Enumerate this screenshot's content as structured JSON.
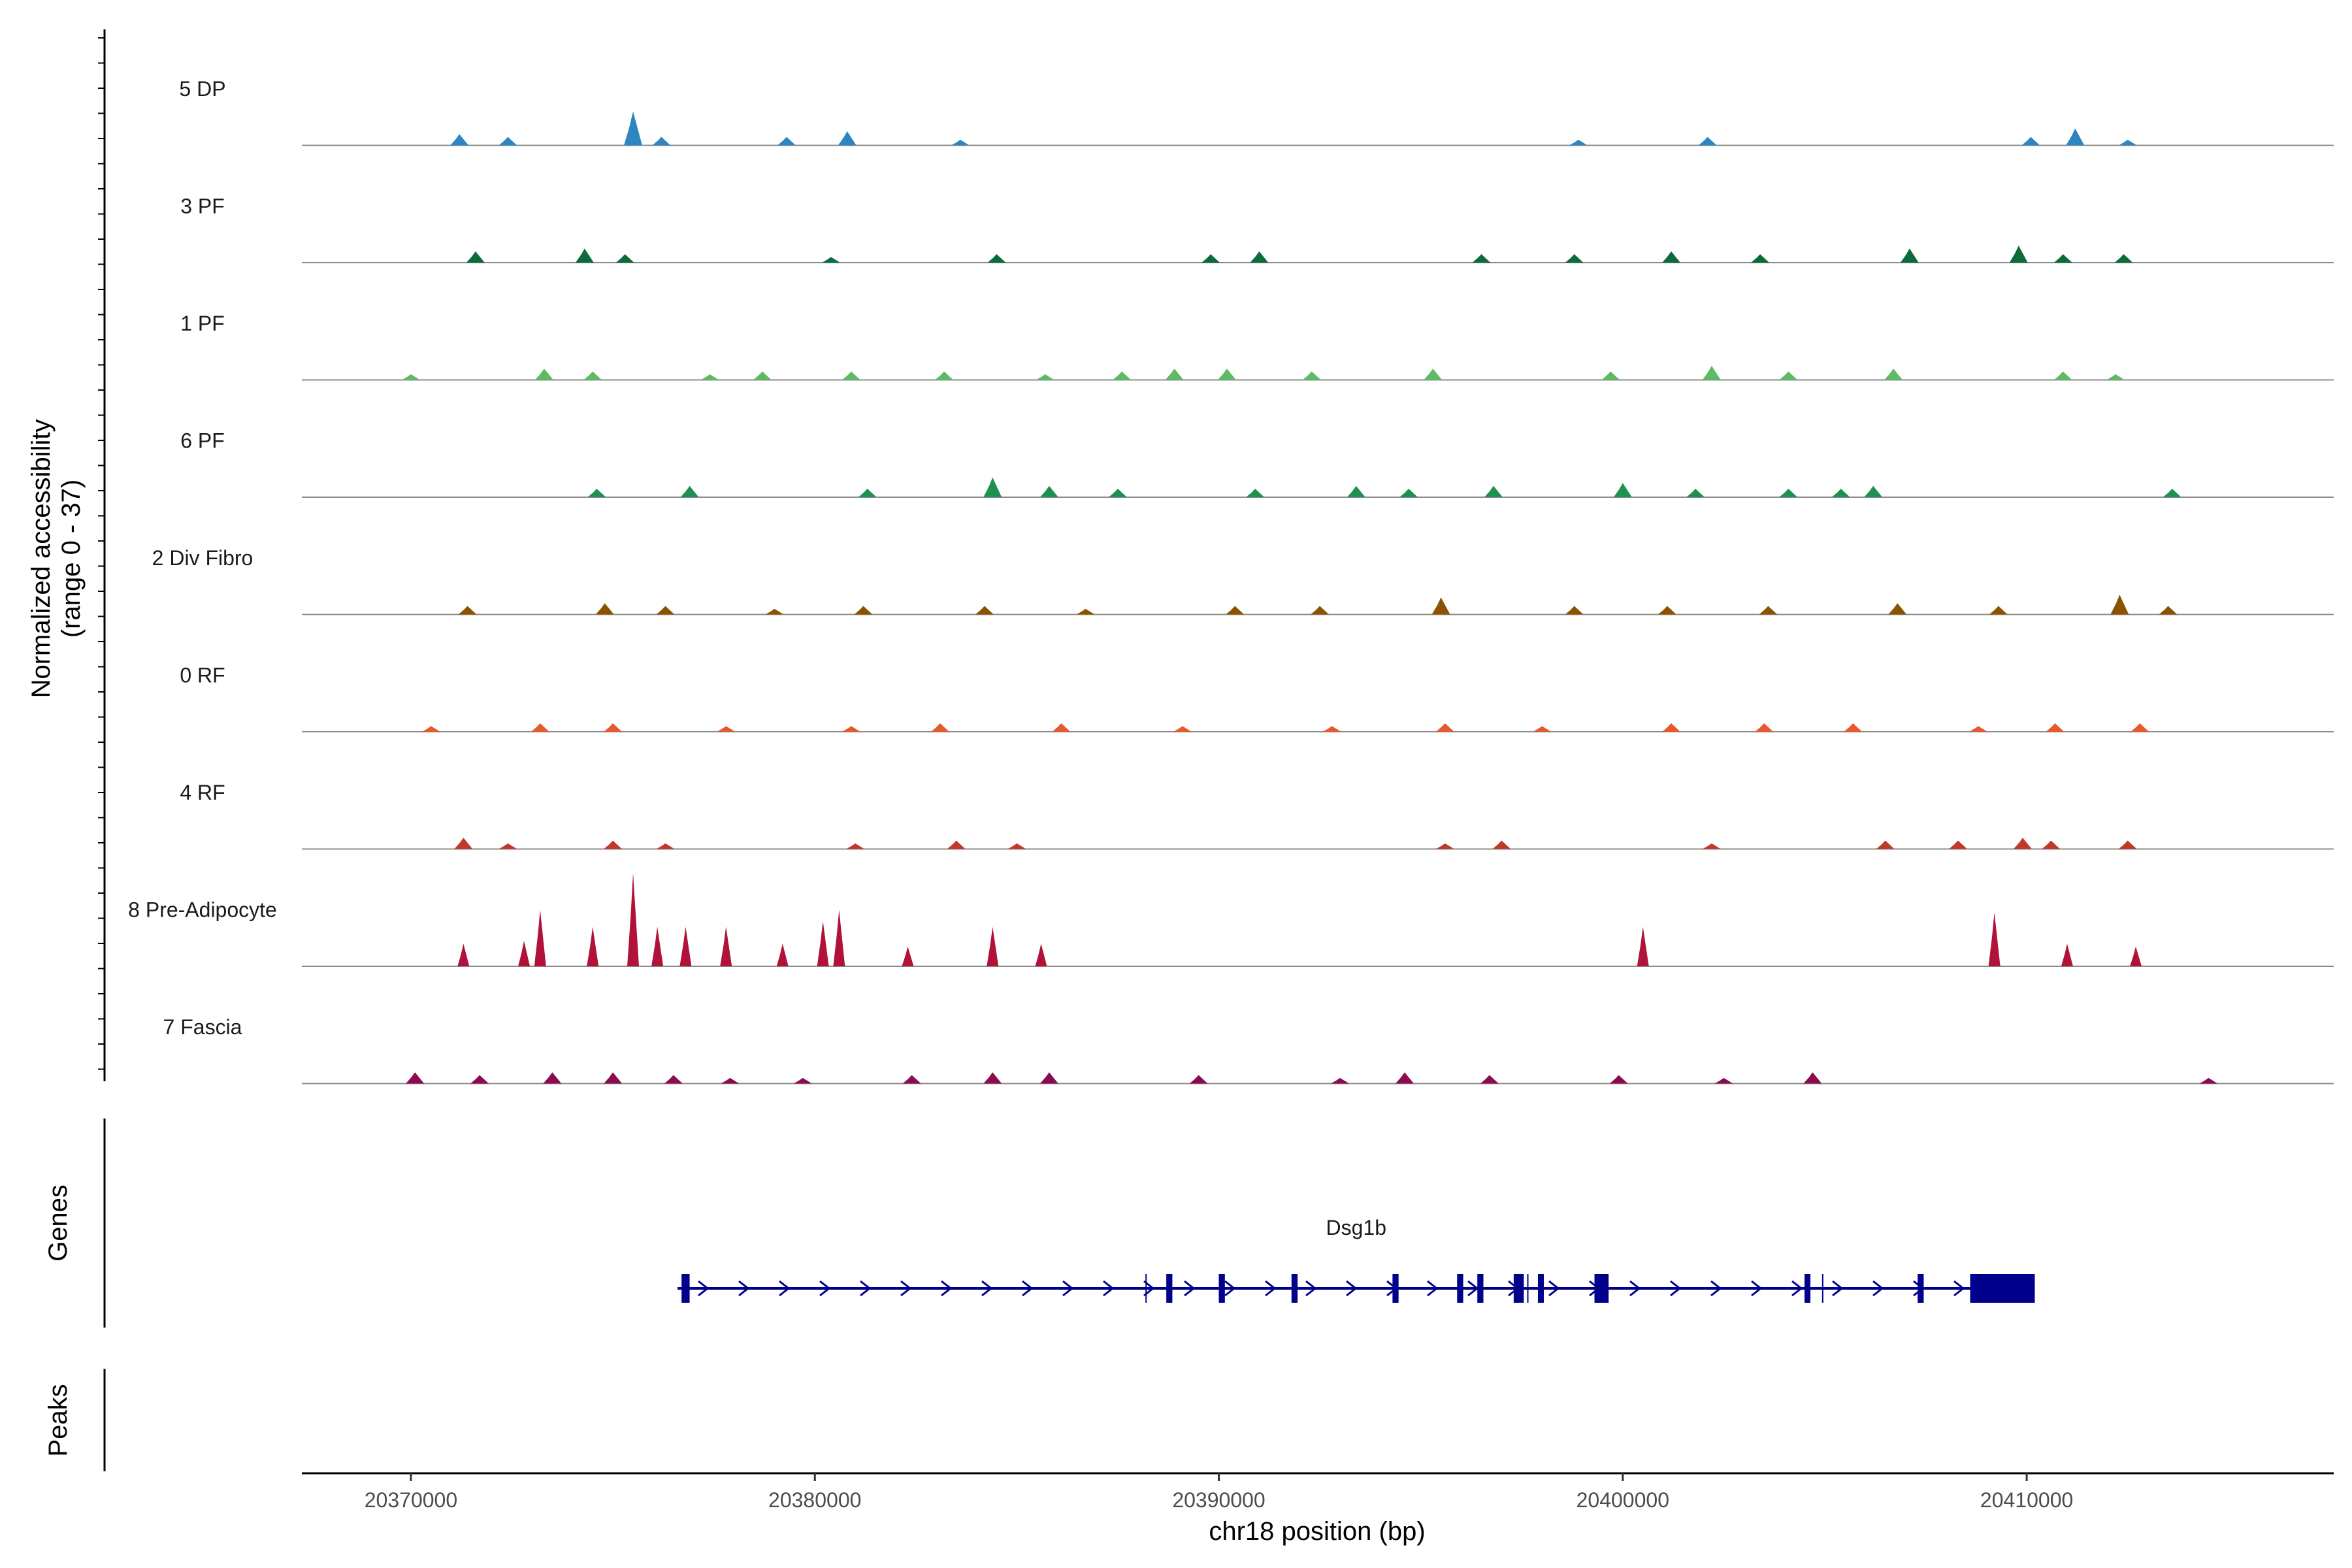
{
  "chart_data": {
    "type": "area",
    "title": "",
    "ylabel_line1": "Normalized accessibility",
    "ylabel_line2": "(range 0 - 37)",
    "y_range": [
      0,
      37
    ],
    "xlabel": "chr18 position (bp)",
    "xlim": [
      20367300,
      20417600
    ],
    "x_ticks": [
      20370000,
      20380000,
      20390000,
      20400000,
      20410000
    ],
    "x_tick_labels": [
      "20370000",
      "20380000",
      "20390000",
      "20400000",
      "20410000"
    ],
    "tracks": [
      {
        "name": "5 DP",
        "color": "#2E86C1",
        "peaks": [
          [
            20371200,
            4
          ],
          [
            20372400,
            3
          ],
          [
            20375500,
            12
          ],
          [
            20376200,
            3
          ],
          [
            20379300,
            3
          ],
          [
            20380800,
            5
          ],
          [
            20383600,
            2
          ],
          [
            20398900,
            2
          ],
          [
            20402100,
            3
          ],
          [
            20410100,
            3
          ],
          [
            20411200,
            6
          ],
          [
            20412500,
            2
          ]
        ]
      },
      {
        "name": "3 PF",
        "color": "#0B6B3A",
        "peaks": [
          [
            20371600,
            4
          ],
          [
            20374300,
            5
          ],
          [
            20375300,
            3
          ],
          [
            20380400,
            2
          ],
          [
            20384500,
            3
          ],
          [
            20389800,
            3
          ],
          [
            20391000,
            4
          ],
          [
            20396500,
            3
          ],
          [
            20398800,
            3
          ],
          [
            20401200,
            4
          ],
          [
            20403400,
            3
          ],
          [
            20407100,
            5
          ],
          [
            20409800,
            6
          ],
          [
            20410900,
            3
          ],
          [
            20412400,
            3
          ]
        ]
      },
      {
        "name": "1 PF",
        "color": "#5DBB63",
        "peaks": [
          [
            20370000,
            2
          ],
          [
            20373300,
            4
          ],
          [
            20374500,
            3
          ],
          [
            20377400,
            2
          ],
          [
            20378700,
            3
          ],
          [
            20380900,
            3
          ],
          [
            20383200,
            3
          ],
          [
            20385700,
            2
          ],
          [
            20387600,
            3
          ],
          [
            20388900,
            4
          ],
          [
            20390200,
            4
          ],
          [
            20392300,
            3
          ],
          [
            20395300,
            4
          ],
          [
            20399700,
            3
          ],
          [
            20402200,
            5
          ],
          [
            20404100,
            3
          ],
          [
            20406700,
            4
          ],
          [
            20410900,
            3
          ],
          [
            20412200,
            2
          ]
        ]
      },
      {
        "name": "6 PF",
        "color": "#1E9150",
        "peaks": [
          [
            20374600,
            3
          ],
          [
            20376900,
            4
          ],
          [
            20381300,
            3
          ],
          [
            20384400,
            7
          ],
          [
            20385800,
            4
          ],
          [
            20387500,
            3
          ],
          [
            20390900,
            3
          ],
          [
            20393400,
            4
          ],
          [
            20394700,
            3
          ],
          [
            20396800,
            4
          ],
          [
            20400000,
            5
          ],
          [
            20401800,
            3
          ],
          [
            20404100,
            3
          ],
          [
            20405400,
            3
          ],
          [
            20406200,
            4
          ],
          [
            20413600,
            3
          ]
        ]
      },
      {
        "name": "2 Div Fibro",
        "color": "#8B5300",
        "peaks": [
          [
            20371400,
            3
          ],
          [
            20374800,
            4
          ],
          [
            20376300,
            3
          ],
          [
            20379000,
            2
          ],
          [
            20381200,
            3
          ],
          [
            20384200,
            3
          ],
          [
            20386700,
            2
          ],
          [
            20390400,
            3
          ],
          [
            20392500,
            3
          ],
          [
            20395500,
            6
          ],
          [
            20398800,
            3
          ],
          [
            20401100,
            3
          ],
          [
            20403600,
            3
          ],
          [
            20406800,
            4
          ],
          [
            20409300,
            3
          ],
          [
            20412300,
            7
          ],
          [
            20413500,
            3
          ]
        ]
      },
      {
        "name": "0 RF",
        "color": "#E8582D",
        "peaks": [
          [
            20370500,
            2
          ],
          [
            20373200,
            3
          ],
          [
            20375000,
            3
          ],
          [
            20377800,
            2
          ],
          [
            20380900,
            2
          ],
          [
            20383100,
            3
          ],
          [
            20386100,
            3
          ],
          [
            20389100,
            2
          ],
          [
            20392800,
            2
          ],
          [
            20395600,
            3
          ],
          [
            20398000,
            2
          ],
          [
            20401200,
            3
          ],
          [
            20403500,
            3
          ],
          [
            20405700,
            3
          ],
          [
            20408800,
            2
          ],
          [
            20410700,
            3
          ],
          [
            20412800,
            3
          ]
        ]
      },
      {
        "name": "4 RF",
        "color": "#C0392B",
        "peaks": [
          [
            20371300,
            4
          ],
          [
            20372400,
            2
          ],
          [
            20375000,
            3
          ],
          [
            20376300,
            2
          ],
          [
            20381000,
            2
          ],
          [
            20383500,
            3
          ],
          [
            20385000,
            2
          ],
          [
            20395600,
            2
          ],
          [
            20397000,
            3
          ],
          [
            20402200,
            2
          ],
          [
            20406500,
            3
          ],
          [
            20408300,
            3
          ],
          [
            20409900,
            4
          ],
          [
            20410600,
            3
          ],
          [
            20412500,
            3
          ]
        ]
      },
      {
        "name": "8 Pre-Adipocyte",
        "color": "#B0123A",
        "peaks": [
          [
            20371300,
            8
          ],
          [
            20372800,
            9
          ],
          [
            20373200,
            20
          ],
          [
            20374500,
            14
          ],
          [
            20375500,
            33
          ],
          [
            20376100,
            14
          ],
          [
            20376800,
            14
          ],
          [
            20377800,
            14
          ],
          [
            20379200,
            8
          ],
          [
            20380200,
            16
          ],
          [
            20380600,
            20
          ],
          [
            20382300,
            7
          ],
          [
            20384400,
            14
          ],
          [
            20385600,
            8
          ],
          [
            20400500,
            14
          ],
          [
            20409200,
            19
          ],
          [
            20411000,
            8
          ],
          [
            20412700,
            7
          ]
        ]
      },
      {
        "name": "7 Fascia",
        "color": "#8B0A50",
        "peaks": [
          [
            20370100,
            4
          ],
          [
            20371700,
            3
          ],
          [
            20373500,
            4
          ],
          [
            20375000,
            4
          ],
          [
            20376500,
            3
          ],
          [
            20377900,
            2
          ],
          [
            20379700,
            2
          ],
          [
            20382400,
            3
          ],
          [
            20384400,
            4
          ],
          [
            20385800,
            4
          ],
          [
            20389500,
            3
          ],
          [
            20393000,
            2
          ],
          [
            20394600,
            4
          ],
          [
            20396700,
            3
          ],
          [
            20399900,
            3
          ],
          [
            20402500,
            2
          ],
          [
            20404700,
            4
          ],
          [
            20414500,
            2
          ]
        ]
      }
    ],
    "genes_panel_label": "Genes",
    "peaks_panel_label": "Peaks",
    "gene": {
      "name": "Dsg1b",
      "strand": "+",
      "start": 20376600,
      "end": 20410200,
      "exons": [
        [
          20376700,
          20376900
        ],
        [
          20388700,
          20388850
        ],
        [
          20390000,
          20390150
        ],
        [
          20391800,
          20391950
        ],
        [
          20394300,
          20394450
        ],
        [
          20395900,
          20396050
        ],
        [
          20396400,
          20396550
        ],
        [
          20397300,
          20397550
        ],
        [
          20397900,
          20398000
        ],
        [
          20399300,
          20399650
        ],
        [
          20404500,
          20404600
        ],
        [
          20407300,
          20407450
        ],
        [
          20408600,
          20410200
        ]
      ],
      "thin_marks": [
        20388200,
        20397650,
        20404950
      ],
      "color": "#00008B"
    }
  }
}
